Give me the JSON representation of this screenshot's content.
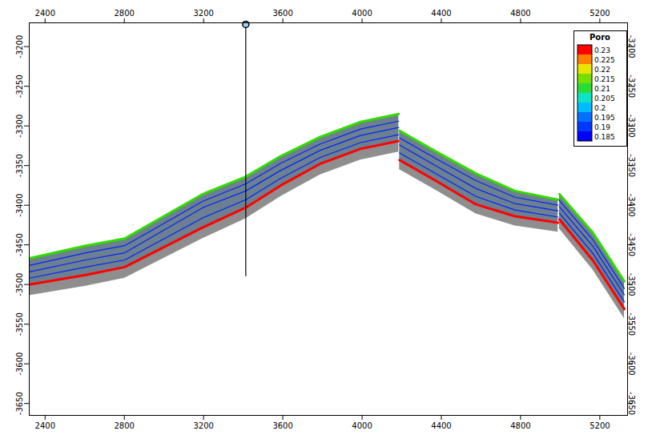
{
  "chart_data": {
    "type": "cross_section",
    "xlim": [
      2320,
      5340
    ],
    "xticks": [
      2400,
      2800,
      3200,
      3600,
      4000,
      4400,
      4800,
      5200
    ],
    "ylim": [
      -3665,
      -3170
    ],
    "yticks": [
      -3200,
      -3250,
      -3300,
      -3350,
      -3400,
      -3450,
      -3500,
      -3550,
      -3600,
      -3650
    ],
    "colorbar": {
      "title": "Poro",
      "range": [
        0.185,
        0.23
      ],
      "ticks": [
        0.23,
        0.225,
        0.22,
        0.215,
        0.21,
        0.205,
        0.2,
        0.195,
        0.19,
        0.185
      ],
      "colors": [
        "#0000ff",
        "#0064ff",
        "#00e6ff",
        "#32dc00",
        "#ffe600",
        "#ff0000"
      ]
    },
    "segments": [
      {
        "x": [
          2320,
          2605,
          2802,
          3196,
          3413,
          3590,
          3787,
          3992,
          4185
        ],
        "base": [
          -3514,
          -3502,
          -3492,
          -3442,
          -3417,
          -3389,
          -3362,
          -3343,
          -3333
        ],
        "horizons": [
          {
            "poro": 0.212,
            "values": [
              -3467,
              -3451,
              -3442,
              -3386,
              -3364,
              -3338,
              -3314,
              -3295,
              -3285
            ]
          },
          {
            "poro": 0.188,
            "values": [
              -3476,
              -3460,
              -3451,
              -3395,
              -3373,
              -3347,
              -3323,
              -3304,
              -3294
            ]
          },
          {
            "poro": 0.188,
            "values": [
              -3484,
              -3469,
              -3460,
              -3403,
              -3382,
              -3356,
              -3331,
              -3312,
              -3302
            ]
          },
          {
            "poro": 0.188,
            "values": [
              -3492,
              -3478,
              -3469,
              -3416,
              -3393,
              -3366,
              -3340,
              -3321,
              -3311
            ]
          },
          {
            "poro": 0.23,
            "values": [
              -3500,
              -3488,
              -3478,
              -3428,
              -3403,
              -3375,
              -3348,
              -3329,
              -3319
            ]
          }
        ]
      },
      {
        "x": [
          4189,
          4378,
          4575,
          4772,
          4989
        ],
        "base": [
          -3355,
          -3382,
          -3411,
          -3426,
          -3434
        ],
        "horizons": [
          {
            "poro": 0.212,
            "values": [
              -3306,
              -3333,
              -3360,
              -3382,
              -3393
            ]
          },
          {
            "poro": 0.188,
            "values": [
              -3315,
              -3342,
              -3369,
              -3390,
              -3400
            ]
          },
          {
            "poro": 0.188,
            "values": [
              -3324,
              -3351,
              -3379,
              -3398,
              -3407
            ]
          },
          {
            "poro": 0.188,
            "values": [
              -3334,
              -3361,
              -3389,
              -3406,
              -3415
            ]
          },
          {
            "poro": 0.23,
            "values": [
              -3343,
              -3370,
              -3399,
              -3414,
              -3422
            ]
          }
        ]
      },
      {
        "x": [
          4996,
          5166,
          5324
        ],
        "base": [
          -3430,
          -3482,
          -3543
        ],
        "horizons": [
          {
            "poro": 0.212,
            "values": [
              -3386,
              -3435,
              -3496
            ]
          },
          {
            "poro": 0.188,
            "values": [
              -3394,
              -3444,
              -3505
            ]
          },
          {
            "poro": 0.188,
            "values": [
              -3402,
              -3452,
              -3513
            ]
          },
          {
            "poro": 0.188,
            "values": [
              -3410,
              -3461,
              -3522
            ]
          },
          {
            "poro": 0.23,
            "values": [
              -3418,
              -3470,
              -3531
            ]
          }
        ]
      }
    ],
    "well": {
      "x": 3413,
      "top": -3172,
      "bottom": -3490
    }
  }
}
